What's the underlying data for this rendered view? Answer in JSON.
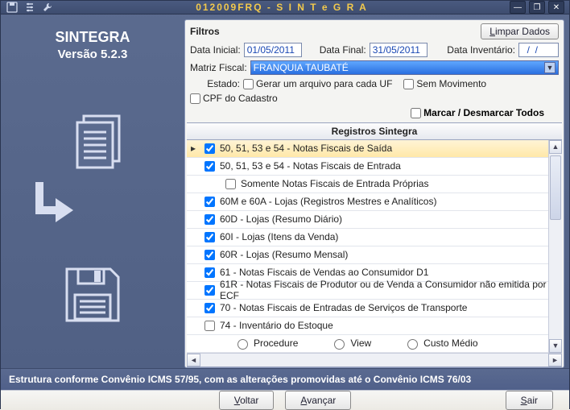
{
  "titlebar": {
    "title": "012009FRQ - S I N T e G R A"
  },
  "sidebar": {
    "app_title": "SINTEGRA",
    "app_version": "Versão 5.2.3"
  },
  "filters": {
    "section_title": "Filtros",
    "clear_button": "Limpar Dados",
    "data_inicial_label": "Data Inicial:",
    "data_inicial_value": "01/05/2011",
    "data_final_label": "Data Final:",
    "data_final_value": "31/05/2011",
    "data_inventario_label": "Data Inventário:",
    "data_inventario_value": "  /  /",
    "matriz_fiscal_label": "Matriz Fiscal:",
    "matriz_fiscal_value": "FRANQUIA TAUBATÉ",
    "estado_label": "Estado:",
    "chk_gerar_uf": "Gerar um arquivo para cada UF",
    "chk_sem_movimento": "Sem Movimento",
    "chk_cpf_cadastro": "CPF do Cadastro",
    "mark_all_label": "Marcar / Desmarcar Todos"
  },
  "grid": {
    "header": "Registros Sintegra",
    "rows": [
      {
        "checked": true,
        "selected": true,
        "indent": false,
        "label": "50, 51, 53 e 54 - Notas Fiscais de Saída"
      },
      {
        "checked": true,
        "selected": false,
        "indent": false,
        "label": "50, 51, 53 e 54 - Notas Fiscais de Entrada"
      },
      {
        "checked": false,
        "selected": false,
        "indent": true,
        "label": "Somente Notas Fiscais de Entrada Próprias"
      },
      {
        "checked": true,
        "selected": false,
        "indent": false,
        "label": "60M e 60A - Lojas (Registros Mestres e Analíticos)"
      },
      {
        "checked": true,
        "selected": false,
        "indent": false,
        "label": "60D - Lojas (Resumo Diário)"
      },
      {
        "checked": true,
        "selected": false,
        "indent": false,
        "label": "60I - Lojas (Itens da Venda)"
      },
      {
        "checked": true,
        "selected": false,
        "indent": false,
        "label": "60R - Lojas (Resumo Mensal)"
      },
      {
        "checked": true,
        "selected": false,
        "indent": false,
        "label": "61 - Notas Fiscais de Vendas ao Consumidor D1"
      },
      {
        "checked": true,
        "selected": false,
        "indent": false,
        "label": "61R - Notas Fiscais de Produtor ou de Venda a Consumidor não emitida por ECF"
      },
      {
        "checked": true,
        "selected": false,
        "indent": false,
        "label": "70 - Notas Fiscais de Entradas de Serviços de Transporte"
      },
      {
        "checked": false,
        "selected": false,
        "indent": false,
        "label": "74 - Inventário do Estoque"
      }
    ],
    "radio_options": {
      "procedure": "Procedure",
      "view": "View",
      "custo_medio": "Custo Médio"
    }
  },
  "status_text": "Estrutura conforme Convênio ICMS 57/95, com as alterações promovidas até o Convênio ICMS 76/03",
  "footer": {
    "voltar": "Voltar",
    "avancar": "Avançar",
    "sair": "Sair"
  },
  "colors": {
    "window_bg_top": "#5b6b8f",
    "window_bg_bottom": "#4f5f83",
    "title_text": "#f2c94c",
    "input_text": "#1947b3",
    "dropdown_bg_top": "#5fa7ff",
    "dropdown_bg_bottom": "#2a6fe0",
    "selected_row_top": "#fff4d6",
    "selected_row_bottom": "#ffe8a8",
    "panel_bg": "#f4f4f2"
  }
}
